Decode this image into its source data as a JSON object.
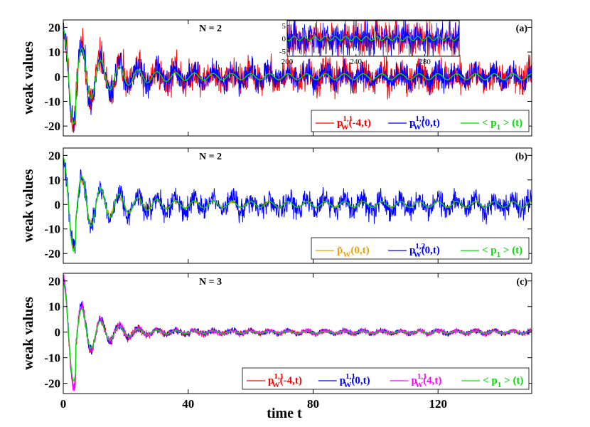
{
  "chart_data": [
    {
      "type": "line",
      "panel_label": "(a)",
      "title": "N = 2",
      "ylabel": "weak values",
      "xlabel": "",
      "xlim": [
        0,
        150
      ],
      "ylim": [
        -24,
        23
      ],
      "xticks": [
        "0",
        "40",
        "80",
        "120"
      ],
      "xtick_values": [
        0,
        40,
        80,
        120
      ],
      "show_xticklabels": false,
      "yticks": [
        "20",
        "10",
        "0",
        "-10",
        "-20"
      ],
      "ytick_values": [
        20,
        10,
        0,
        -10,
        -20
      ],
      "legend_position": "bottom-right",
      "series": [
        {
          "legend": "p_W^{1,1}(-4,t)",
          "main": "p",
          "sub": "W",
          "sup": "1,1",
          "arg": "(-4,t)",
          "color": "#ff0000",
          "amp0": 20,
          "decay": 0.016,
          "floor": 2.0,
          "noise": 5.5,
          "noise_decay": 0.002,
          "period": 6.0,
          "phase": 0.0,
          "seed": 11
        },
        {
          "legend": "p_W^{1,1}(0,t)",
          "main": "p",
          "sub": "W",
          "sup": "1,1",
          "arg": "(0,t)",
          "color": "#0000ff",
          "amp0": 19,
          "decay": 0.016,
          "floor": 2.0,
          "noise": 4.2,
          "noise_decay": 0.002,
          "period": 6.0,
          "phase": 0.0,
          "seed": 23
        },
        {
          "legend": "< p_1 > (t)",
          "main": "< p",
          "sub": "1",
          "sup": "",
          "arg": " > (t)",
          "color": "#00dd00",
          "amp0": 19,
          "decay": 0.017,
          "floor": 1.2,
          "noise": 0.0,
          "noise_decay": 0.0,
          "period": 6.0,
          "phase": 0.0,
          "seed": 1
        }
      ],
      "inset": {
        "xlim": [
          200,
          300
        ],
        "ylim": [
          -7,
          7
        ],
        "xticks": [
          "200",
          "240",
          "280"
        ],
        "xtick_values": [
          200,
          240,
          280
        ],
        "yticks": [
          "5",
          "0",
          "-5"
        ],
        "ytick_values": [
          5,
          0,
          -5
        ]
      }
    },
    {
      "type": "line",
      "panel_label": "(b)",
      "title": "N = 2",
      "ylabel": "weak values",
      "xlabel": "",
      "xlim": [
        0,
        150
      ],
      "ylim": [
        -24,
        23
      ],
      "xticks": [
        "0",
        "40",
        "80",
        "120"
      ],
      "xtick_values": [
        0,
        40,
        80,
        120
      ],
      "show_xticklabels": false,
      "yticks": [
        "20",
        "10",
        "0",
        "-10",
        "-20"
      ],
      "ytick_values": [
        20,
        10,
        0,
        -10,
        -20
      ],
      "legend_position": "bottom-right",
      "series": [
        {
          "legend": "~p_W(0,t)",
          "main": "p̃",
          "sub": "W",
          "sup": "",
          "arg": "(0,t)",
          "color": "#f0a000",
          "amp0": 18,
          "decay": 0.02,
          "floor": 1.2,
          "noise": 1.5,
          "noise_decay": 0.05,
          "period": 6.0,
          "phase": 0.0,
          "seed": 31
        },
        {
          "legend": "p_W^{1,2}(0,t)",
          "main": "p",
          "sub": "W",
          "sup": "1,2",
          "arg": "(0,t)",
          "color": "#0000ff",
          "amp0": 17,
          "decay": 0.017,
          "floor": 2.2,
          "noise": 3.6,
          "noise_decay": 0.0,
          "period": 6.0,
          "phase": 0.0,
          "seed": 47
        },
        {
          "legend": "< p_1 > (t)",
          "main": "< p",
          "sub": "1",
          "sup": "",
          "arg": " > (t)",
          "color": "#00dd00",
          "amp0": 19,
          "decay": 0.017,
          "floor": 1.2,
          "noise": 0.0,
          "noise_decay": 0.0,
          "period": 6.0,
          "phase": 0.0,
          "seed": 2
        }
      ]
    },
    {
      "type": "line",
      "panel_label": "(c)",
      "title": "N = 3",
      "ylabel": "weak values",
      "xlabel": "time t",
      "xlim": [
        0,
        150
      ],
      "ylim": [
        -24,
        23
      ],
      "xticks": [
        "0",
        "40",
        "80",
        "120"
      ],
      "xtick_values": [
        0,
        40,
        80,
        120
      ],
      "show_xticklabels": true,
      "yticks": [
        "20",
        "10",
        "0",
        "-10",
        "-20"
      ],
      "ytick_values": [
        20,
        10,
        0,
        -10,
        -20
      ],
      "legend_position": "bottom-right",
      "series": [
        {
          "legend": "p_W^{1,1}(-4,t)",
          "main": "p",
          "sub": "W",
          "sup": "1,1",
          "arg": "(-4,t)",
          "color": "#ff0000",
          "amp0": 22,
          "decay": 0.022,
          "floor": 0.6,
          "noise": 2.0,
          "noise_decay": 0.05,
          "period": 6.0,
          "phase": 0.0,
          "seed": 53
        },
        {
          "legend": "p_W^{1,1}(0,t)",
          "main": "p",
          "sub": "W",
          "sup": "1,1",
          "arg": "(0,t)",
          "color": "#0000ff",
          "amp0": 21,
          "decay": 0.022,
          "floor": 0.6,
          "noise": 2.0,
          "noise_decay": 0.05,
          "period": 6.0,
          "phase": 0.0,
          "seed": 61
        },
        {
          "legend": "p_W^{1,1}(4,t)",
          "main": "p",
          "sub": "W",
          "sup": "1,1",
          "arg": "(4,t)",
          "color": "#ff00ff",
          "amp0": 21,
          "decay": 0.022,
          "floor": 0.6,
          "noise": 2.0,
          "noise_decay": 0.05,
          "period": 6.0,
          "phase": 0.0,
          "seed": 71
        },
        {
          "legend": "< p_1 > (t)",
          "main": "< p",
          "sub": "1",
          "sup": "",
          "arg": " > (t)",
          "color": "#00dd00",
          "amp0": 19,
          "decay": 0.022,
          "floor": 0.4,
          "noise": 0.0,
          "noise_decay": 0.0,
          "period": 6.0,
          "phase": 0.0,
          "seed": 3
        }
      ]
    }
  ]
}
